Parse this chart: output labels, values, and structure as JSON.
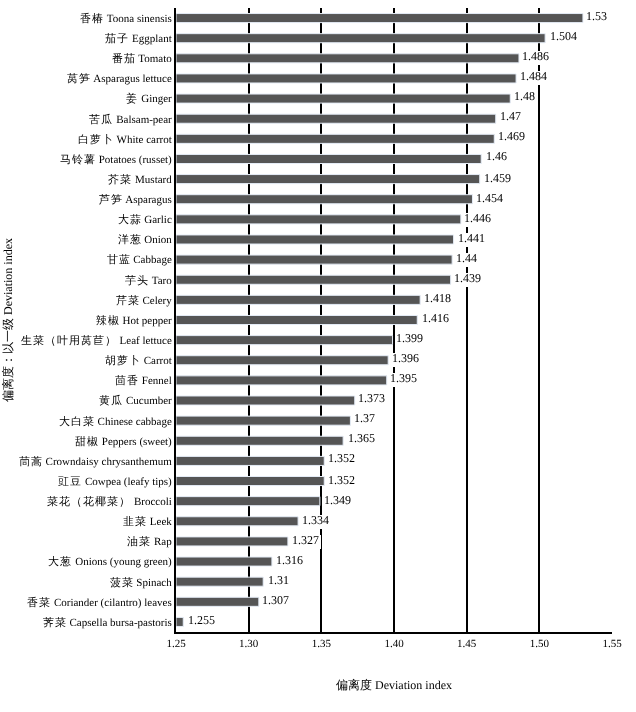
{
  "chart_data": {
    "type": "bar",
    "orientation": "horizontal",
    "xlabel": "偏离度 Deviation index",
    "ylabel": "偏离度：以一级 Deviation index",
    "categories": [
      "香椿 Toona sinensis",
      "茄子 Eggplant",
      "番茄 Tomato",
      "莴笋 Asparagus lettuce",
      "姜 Ginger",
      "苦瓜 Balsam-pear",
      "白萝卜 White carrot",
      "马铃薯 Potatoes (russet)",
      "芥菜 Mustard",
      "芦笋 Asparagus",
      "大蒜 Garlic",
      "洋葱 Onion",
      "甘蓝 Cabbage",
      "芋头 Taro",
      "芹菜 Celery",
      "辣椒 Hot pepper",
      "生菜（叶用莴苣） Leaf lettuce",
      "胡萝卜 Carrot",
      "茴香 Fennel",
      "黄瓜 Cucumber",
      "大白菜 Chinese cabbage",
      "甜椒 Peppers (sweet)",
      "茼蒿 Crowndaisy chrysanthemum",
      "豇豆 Cowpea (leafy tips)",
      "菜花（花椰菜） Broccoli",
      "韭菜 Leek",
      "油菜 Rap",
      "大葱 Onions (young green)",
      "菠菜 Spinach",
      "香菜 Coriander (cilantro) leaves",
      "荠菜 Capsella bursa-pastoris"
    ],
    "values": [
      1.53,
      1.504,
      1.486,
      1.484,
      1.48,
      1.47,
      1.469,
      1.46,
      1.459,
      1.454,
      1.446,
      1.441,
      1.44,
      1.439,
      1.418,
      1.416,
      1.399,
      1.396,
      1.395,
      1.373,
      1.37,
      1.365,
      1.352,
      1.352,
      1.349,
      1.334,
      1.327,
      1.316,
      1.31,
      1.307,
      1.255
    ],
    "color": "#555555",
    "data_labels": true,
    "grid": "x",
    "legend": false,
    "xlim": [
      1.25,
      1.55
    ],
    "xticks": [
      1.25,
      {
        "value": 1.3,
        "label": "1.30"
      },
      1.35,
      {
        "value": 1.4,
        "label": "1.40"
      },
      1.45,
      {
        "value": 1.5,
        "label": "1.50"
      },
      1.55
    ]
  }
}
